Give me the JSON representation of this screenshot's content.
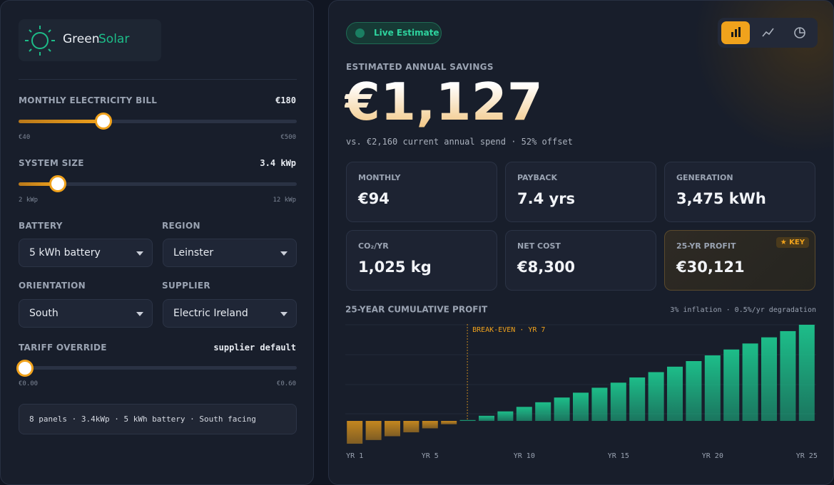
{
  "brand": {
    "name_1": "Green",
    "name_2": "Solar"
  },
  "controls": {
    "monthly_bill": {
      "label": "MONTHLY ELECTRICITY BILL",
      "value": {
        "value": 180,
        "label": "€180"
      },
      "min": {
        "value": 40,
        "label": "€40"
      },
      "max": {
        "value": 500,
        "label": "€500"
      }
    },
    "system_size": {
      "label": "SYSTEM SIZE",
      "value": {
        "value": 3.4,
        "label": "3.4 kWp"
      },
      "min": {
        "value": 2,
        "label": "2 kWp"
      },
      "max": {
        "value": 12,
        "label": "12 kWp"
      }
    },
    "battery": {
      "label": "BATTERY",
      "selected": "5 kWh battery"
    },
    "region": {
      "label": "REGION",
      "selected": "Leinster"
    },
    "orientation": {
      "label": "ORIENTATION",
      "selected": "South"
    },
    "supplier": {
      "label": "SUPPLIER",
      "selected": "Electric Ireland"
    },
    "tariff": {
      "label": "TARIFF OVERRIDE",
      "value": "supplier default",
      "min": {
        "value": 0,
        "label": "€0.00"
      },
      "max": {
        "value": 0.6,
        "label": "€0.60"
      }
    },
    "summary": "8 panels · 3.4kWp · 5 kWh battery · South facing"
  },
  "badge": "Live Estimate",
  "headline": {
    "label": "ESTIMATED ANNUAL SAVINGS",
    "value": "€1,127",
    "note": "vs. €2,160 current annual spend · 52% offset"
  },
  "stats": [
    {
      "label": "MONTHLY",
      "value": "€94"
    },
    {
      "label": "PAYBACK",
      "value": "7.4 yrs"
    },
    {
      "label": "GENERATION",
      "value": "3,475 kWh"
    },
    {
      "label": "CO₂/YR",
      "value": "1,025 kg"
    },
    {
      "label": "NET COST",
      "value": "€8,300"
    },
    {
      "label": "25-YR PROFIT",
      "value": "€30,121",
      "tag": "★ KEY"
    }
  ],
  "chart_data": {
    "type": "bar",
    "title": "25-YEAR CUMULATIVE PROFIT",
    "subtitle": "3% inflation · 0.5%/yr degradation",
    "annotation": "BREAK-EVEN · YR 7",
    "categories": [
      "YR 1",
      null,
      null,
      null,
      "YR 5",
      null,
      null,
      null,
      null,
      "YR 10",
      null,
      null,
      null,
      null,
      "YR 15",
      null,
      null,
      null,
      null,
      "YR 20",
      null,
      null,
      null,
      null,
      "YR 25"
    ],
    "values": [
      -7150,
      -5990,
      -4800,
      -3580,
      -2330,
      -1050,
      260,
      1600,
      2980,
      4390,
      5840,
      7320,
      8840,
      10390,
      11980,
      13610,
      15280,
      16990,
      18740,
      20530,
      22370,
      24250,
      26180,
      28130,
      30121
    ],
    "colors": {
      "positive": "#1dbd89",
      "negative": "#c4871f"
    }
  }
}
